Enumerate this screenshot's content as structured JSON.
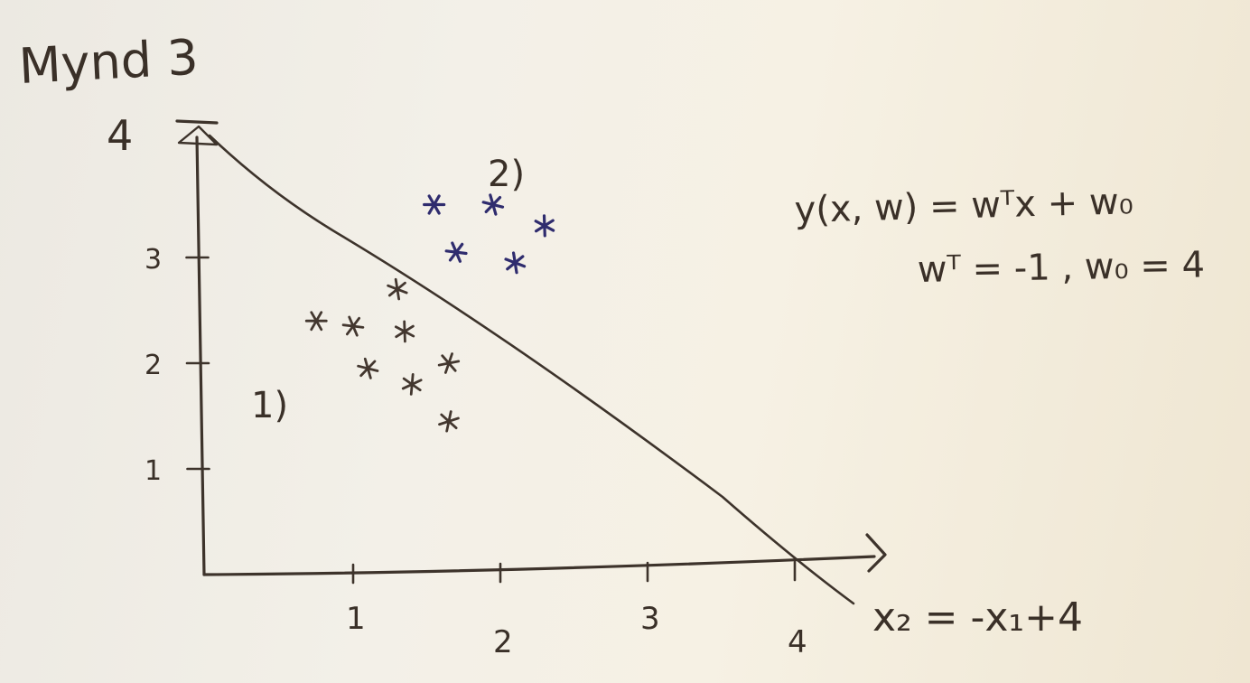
{
  "figure_label": "Mynd 3",
  "formula": {
    "line1": "y(x, w) = wᵀx + w₀",
    "line2": "wᵀ = -1 ,  w₀ = 4"
  },
  "boundary_label": "x₂ = -x₁+4",
  "region_labels": {
    "region1": "1)",
    "region2": "2)"
  },
  "chart_data": {
    "type": "scatter",
    "title": "Mynd 3",
    "xlabel": "",
    "ylabel": "",
    "xlim": [
      0,
      4.5
    ],
    "ylim": [
      0,
      4
    ],
    "x_ticks": [
      1,
      2,
      3,
      4
    ],
    "y_ticks": [
      1,
      2,
      3,
      4
    ],
    "grid": false,
    "series": [
      {
        "name": "1)",
        "color": "#43372f",
        "points": [
          {
            "x": 0.75,
            "y": 2.4
          },
          {
            "x": 1.0,
            "y": 2.35
          },
          {
            "x": 1.1,
            "y": 1.95
          },
          {
            "x": 1.3,
            "y": 2.7
          },
          {
            "x": 1.35,
            "y": 2.3
          },
          {
            "x": 1.4,
            "y": 1.8
          },
          {
            "x": 1.65,
            "y": 1.45
          },
          {
            "x": 1.65,
            "y": 2.0
          }
        ]
      },
      {
        "name": "2)",
        "color": "#2f2c6e",
        "points": [
          {
            "x": 1.55,
            "y": 3.5
          },
          {
            "x": 1.7,
            "y": 3.05
          },
          {
            "x": 1.95,
            "y": 3.5
          },
          {
            "x": 2.1,
            "y": 2.95
          },
          {
            "x": 2.3,
            "y": 3.3
          }
        ]
      }
    ],
    "decision_boundary": {
      "equation": "x₂ = -x₁+4",
      "slope": -1,
      "intercept": 4
    }
  }
}
